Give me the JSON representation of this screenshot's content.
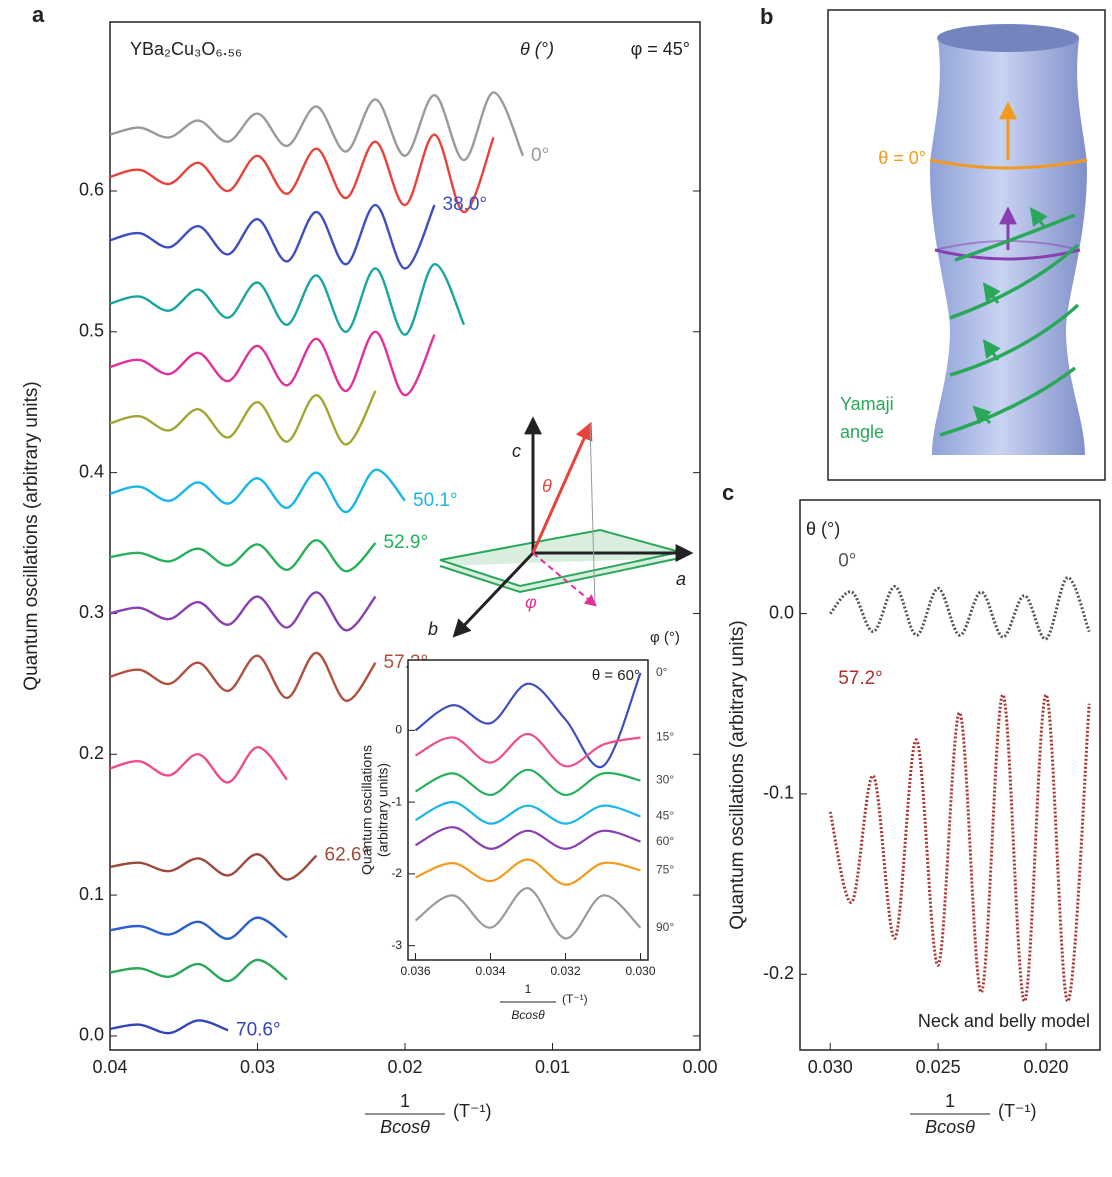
{
  "chart_data": [
    {
      "type": "line",
      "panel": "a",
      "sample": "YBa₂Cu₃O₆.₅₆",
      "theta_header": "θ (°)",
      "phi": "φ = 45°",
      "y_label": "Quantum oscillations (arbitrary units)",
      "x_label": {
        "numerator": "1",
        "denominator": "Bcosθ",
        "unit": "(T⁻¹)"
      },
      "axes_diagram": {
        "c": "c",
        "a": "a",
        "b": "b",
        "theta": "θ",
        "phi": "φ"
      },
      "xlim": [
        0.04,
        0
      ],
      "ylim": [
        -0.01,
        0.72
      ],
      "xticks": [
        0.04,
        0.03,
        0.02,
        0.01,
        {
          "value": 0,
          "label": "0.00"
        }
      ],
      "yticks": [
        {
          "value": 0,
          "label": "0.0"
        },
        0.1,
        0.2,
        0.3,
        0.4,
        0.5,
        0.6
      ],
      "x": [
        0.04,
        0.038,
        0.036,
        0.034,
        0.032,
        0.03,
        0.028,
        0.026,
        0.024,
        0.022,
        0.02,
        0.018,
        0.016,
        0.014,
        0.012
      ],
      "series": [
        {
          "name": "0°",
          "color": "#9a9a9a",
          "values": [
            0.64,
            0.645,
            0.638,
            0.65,
            0.635,
            0.655,
            0.632,
            0.66,
            0.628,
            0.665,
            0.625,
            0.668,
            0.622,
            0.67,
            0.625
          ]
        },
        {
          "color": "#e8423a",
          "values": [
            0.61,
            0.615,
            0.605,
            0.62,
            0.6,
            0.625,
            0.598,
            0.63,
            0.595,
            0.635,
            0.59,
            0.64,
            0.585,
            0.638,
            null
          ]
        },
        {
          "name": "38.0°",
          "color": "#3d4fbf",
          "values": [
            0.565,
            0.57,
            0.56,
            0.575,
            0.555,
            0.58,
            0.55,
            0.585,
            0.548,
            0.59,
            0.545,
            0.59,
            null,
            null,
            null
          ]
        },
        {
          "color": "#1aa5a0",
          "values": [
            0.52,
            0.525,
            0.515,
            0.53,
            0.51,
            0.535,
            0.505,
            0.54,
            0.5,
            0.545,
            0.498,
            0.548,
            0.505,
            null,
            null
          ]
        },
        {
          "color": "#e0309a",
          "values": [
            0.475,
            0.48,
            0.47,
            0.485,
            0.465,
            0.49,
            0.462,
            0.495,
            0.458,
            0.5,
            0.455,
            0.498,
            null,
            null,
            null
          ]
        },
        {
          "color": "#a3a533",
          "values": [
            0.435,
            0.44,
            0.43,
            0.445,
            0.425,
            0.45,
            0.422,
            0.455,
            0.42,
            0.458,
            null,
            null,
            null,
            null,
            null
          ]
        },
        {
          "name": "50.1°",
          "color": "#19b6e8",
          "values": [
            0.385,
            0.39,
            0.38,
            0.393,
            0.378,
            0.396,
            0.375,
            0.4,
            0.372,
            0.402,
            0.38,
            null,
            null,
            null,
            null
          ]
        },
        {
          "name": "52.9°",
          "color": "#27b05a",
          "values": [
            0.34,
            0.343,
            0.337,
            0.346,
            0.334,
            0.349,
            0.331,
            0.352,
            0.33,
            0.35,
            null,
            null,
            null,
            null,
            null
          ]
        },
        {
          "color": "#8a3fb0",
          "values": [
            0.3,
            0.304,
            0.296,
            0.308,
            0.292,
            0.312,
            0.29,
            0.315,
            0.288,
            0.312,
            null,
            null,
            null,
            null,
            null
          ]
        },
        {
          "name": "57.2°",
          "color": "#b0503f",
          "values": [
            0.255,
            0.26,
            0.25,
            0.265,
            0.245,
            0.27,
            0.24,
            0.272,
            0.238,
            0.265,
            null,
            null,
            null,
            null,
            null
          ]
        },
        {
          "color": "#ef4e8c",
          "values": [
            0.19,
            0.195,
            0.185,
            0.2,
            0.18,
            0.205,
            0.182,
            null,
            null,
            null,
            null,
            null,
            null,
            null,
            null
          ]
        },
        {
          "name": "62.6°",
          "color": "#9c4a3a",
          "values": [
            0.12,
            0.123,
            0.117,
            0.126,
            0.114,
            0.129,
            0.111,
            0.128,
            null,
            null,
            null,
            null,
            null,
            null,
            null
          ]
        },
        {
          "color": "#2b5fd0",
          "values": [
            0.075,
            0.078,
            0.072,
            0.081,
            0.069,
            0.084,
            0.07,
            null,
            null,
            null,
            null,
            null,
            null,
            null,
            null
          ]
        },
        {
          "color": "#2aa85a",
          "values": [
            0.045,
            0.048,
            0.042,
            0.051,
            0.039,
            0.054,
            0.04,
            null,
            null,
            null,
            null,
            null,
            null,
            null,
            null
          ]
        },
        {
          "name": "70.6°",
          "color": "#3344bb",
          "values": [
            0.005,
            0.008,
            0.002,
            0.011,
            0.004,
            null,
            null,
            null,
            null,
            null,
            null,
            null,
            null,
            null,
            null
          ]
        }
      ]
    },
    {
      "type": "line",
      "theta": "θ = 60°",
      "legend_title": "φ (°)",
      "y_label": [
        "Quantum oscillations",
        "(arbitrary units)"
      ],
      "x_label": {
        "numerator": "1",
        "denominator": "Bcosθ",
        "unit": "(T⁻¹)"
      },
      "xlim": [
        0.0362,
        0.0298
      ],
      "ylim": [
        -3.2,
        0.98
      ],
      "xticks": [
        0.036,
        0.034,
        0.032,
        {
          "value": 0.03,
          "label": "0.030"
        }
      ],
      "yticks": [
        0,
        -1,
        -2,
        -3
      ],
      "x": [
        0.036,
        0.035,
        0.034,
        0.033,
        0.032,
        0.031,
        0.03
      ],
      "series": [
        {
          "name": "0°",
          "color": "#3d4fbf",
          "values": [
            0.0,
            0.35,
            0.1,
            0.65,
            0.15,
            -0.5,
            0.8
          ]
        },
        {
          "name": "15°",
          "color": "#ef4e8c",
          "values": [
            -0.35,
            -0.1,
            -0.45,
            -0.05,
            -0.5,
            -0.2,
            -0.1
          ]
        },
        {
          "name": "30°",
          "color": "#27b05a",
          "values": [
            -0.85,
            -0.6,
            -0.9,
            -0.55,
            -0.9,
            -0.6,
            -0.7
          ]
        },
        {
          "name": "45°",
          "color": "#19b6e8",
          "values": [
            -1.25,
            -1.0,
            -1.3,
            -1.05,
            -1.3,
            -1.05,
            -1.2
          ]
        },
        {
          "name": "60°",
          "color": "#8a3fb0",
          "values": [
            -1.6,
            -1.35,
            -1.65,
            -1.4,
            -1.65,
            -1.4,
            -1.55
          ]
        },
        {
          "name": "75°",
          "color": "#f39a1e",
          "values": [
            -2.05,
            -1.85,
            -2.1,
            -1.8,
            -2.15,
            -1.85,
            -1.95
          ]
        },
        {
          "name": "90°",
          "color": "#9a9a9a",
          "values": [
            -2.65,
            -2.3,
            -2.75,
            -2.2,
            -2.9,
            -2.3,
            -2.75
          ]
        }
      ]
    },
    {
      "type": "line",
      "panel": "c",
      "legend_title": "θ (°)",
      "note": "Neck and belly model",
      "line_style": "dotted",
      "y_label": "Quantum oscillations (arbitrary units)",
      "x_label": {
        "numerator": "1",
        "denominator": "Bcosθ",
        "unit": "(T⁻¹)"
      },
      "xlim": [
        0.0314,
        0.0175
      ],
      "ylim": [
        -0.242,
        0.063
      ],
      "xticks": [
        {
          "value": 0.03,
          "label": "0.030"
        },
        0.025,
        {
          "value": 0.02,
          "label": "0.020"
        }
      ],
      "yticks": [
        {
          "value": 0,
          "label": "0.0"
        },
        -0.1,
        -0.2
      ],
      "x": [
        0.03,
        0.029,
        0.028,
        0.027,
        0.026,
        0.025,
        0.024,
        0.023,
        0.022,
        0.021,
        0.02,
        0.019,
        0.018
      ],
      "series": [
        {
          "name": "0°",
          "color": "#555555",
          "values": [
            0.0,
            0.012,
            -0.01,
            0.015,
            -0.012,
            0.014,
            -0.012,
            0.012,
            -0.013,
            0.01,
            -0.014,
            0.02,
            -0.01
          ]
        },
        {
          "name": "57.2°",
          "color": "#a8332c",
          "values": [
            -0.11,
            -0.16,
            -0.09,
            -0.18,
            -0.07,
            -0.195,
            -0.055,
            -0.21,
            -0.045,
            -0.215,
            -0.045,
            -0.215,
            -0.05
          ]
        }
      ]
    }
  ],
  "diagram": {
    "panel": "b",
    "theta": "θ = 0°",
    "yamaji": [
      "Yamaji",
      "angle"
    ]
  }
}
